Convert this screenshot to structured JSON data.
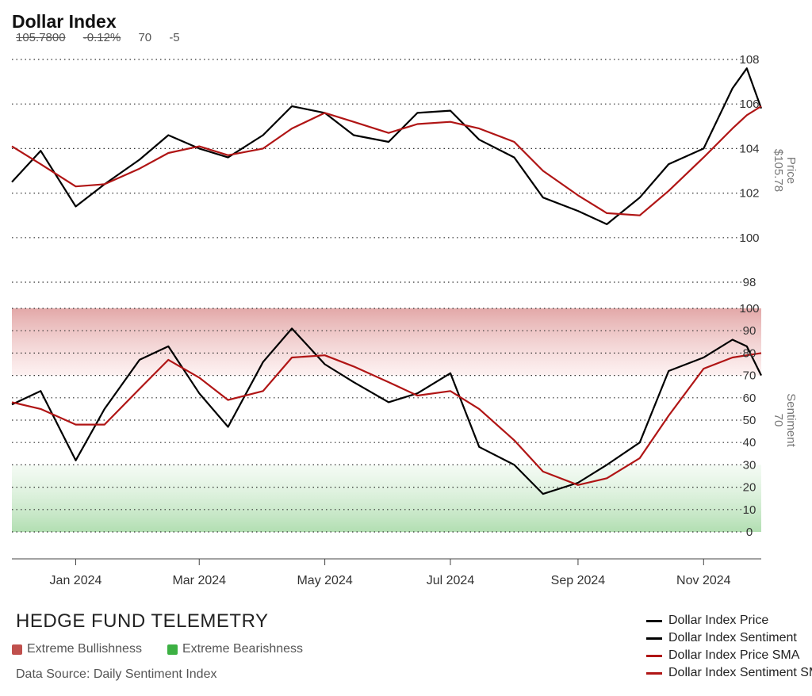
{
  "header": {
    "title": "Dollar Index",
    "price": "105.7800",
    "change": "-0.12%",
    "sentiment": "70",
    "sentiment_change": "-5"
  },
  "footer": {
    "brand": "HEDGE FUND TELEMETRY",
    "zone_legend": [
      {
        "label": "Extreme Bullishness",
        "color": "#c0504d"
      },
      {
        "label": "Extreme Bearishness",
        "color": "#3cb043"
      }
    ],
    "source": "Data Source: Daily Sentiment Index"
  },
  "series_legend": [
    {
      "label": "Dollar Index Price",
      "color": "#000000"
    },
    {
      "label": "Dollar Index Sentiment",
      "color": "#000000"
    },
    {
      "label": "Dollar Index Price SMA",
      "color": "#b01515"
    },
    {
      "label": "Dollar Index Sentiment SMA",
      "color": "#b01515"
    }
  ],
  "chart_data": [
    {
      "type": "line",
      "name": "price-panel",
      "ylabel": "Price",
      "ylabel_value": "$105.78",
      "ylim": [
        98,
        108
      ],
      "yticks": [
        98,
        100,
        102,
        104,
        106,
        108
      ],
      "grid": true,
      "xticks": [
        "Jan 2024",
        "Mar 2024",
        "May 2024",
        "Jul 2024",
        "Sep 2024",
        "Nov 2024"
      ],
      "x": [
        "2023-12-01",
        "2023-12-15",
        "2024-01-01",
        "2024-01-15",
        "2024-02-01",
        "2024-02-15",
        "2024-03-01",
        "2024-03-15",
        "2024-04-01",
        "2024-04-15",
        "2024-05-01",
        "2024-05-15",
        "2024-06-01",
        "2024-06-15",
        "2024-07-01",
        "2024-07-15",
        "2024-08-01",
        "2024-08-15",
        "2024-09-01",
        "2024-09-15",
        "2024-10-01",
        "2024-10-15",
        "2024-11-01",
        "2024-11-15",
        "2024-11-22",
        "2024-11-29"
      ],
      "series": [
        {
          "name": "Dollar Index Price",
          "color": "#000000",
          "values": [
            102.5,
            103.9,
            101.4,
            102.4,
            103.5,
            104.6,
            104.0,
            103.6,
            104.6,
            105.9,
            105.6,
            104.6,
            104.3,
            105.6,
            105.7,
            104.4,
            103.6,
            101.8,
            101.2,
            100.6,
            101.8,
            103.3,
            104.0,
            106.7,
            107.6,
            105.8
          ]
        },
        {
          "name": "Dollar Index Price SMA",
          "color": "#b01515",
          "values": [
            104.1,
            103.3,
            102.3,
            102.4,
            103.1,
            103.8,
            104.1,
            103.7,
            104.0,
            104.9,
            105.6,
            105.2,
            104.7,
            105.1,
            105.2,
            104.9,
            104.3,
            103.0,
            101.9,
            101.1,
            101.0,
            102.1,
            103.6,
            104.9,
            105.5,
            105.9
          ]
        }
      ]
    },
    {
      "type": "line",
      "name": "sentiment-panel",
      "ylabel": "Sentiment",
      "ylabel_value": "70",
      "ylim": [
        0,
        100
      ],
      "yticks": [
        0,
        10,
        20,
        30,
        40,
        50,
        60,
        70,
        80,
        90,
        100
      ],
      "extreme_bullish_zone": [
        70,
        100
      ],
      "extreme_bearish_zone": [
        0,
        30
      ],
      "grid": true,
      "x": [
        "2023-12-01",
        "2023-12-15",
        "2024-01-01",
        "2024-01-15",
        "2024-02-01",
        "2024-02-15",
        "2024-03-01",
        "2024-03-15",
        "2024-04-01",
        "2024-04-15",
        "2024-05-01",
        "2024-05-15",
        "2024-06-01",
        "2024-06-15",
        "2024-07-01",
        "2024-07-15",
        "2024-08-01",
        "2024-08-15",
        "2024-09-01",
        "2024-09-15",
        "2024-10-01",
        "2024-10-15",
        "2024-11-01",
        "2024-11-15",
        "2024-11-22",
        "2024-11-29"
      ],
      "series": [
        {
          "name": "Dollar Index Sentiment",
          "color": "#000000",
          "values": [
            57,
            63,
            32,
            55,
            77,
            83,
            62,
            47,
            76,
            91,
            75,
            67,
            58,
            62,
            71,
            38,
            30,
            17,
            22,
            30,
            40,
            72,
            78,
            86,
            83,
            70
          ]
        },
        {
          "name": "Dollar Index Sentiment SMA",
          "color": "#b01515",
          "values": [
            58,
            55,
            48,
            48,
            64,
            77,
            69,
            59,
            63,
            78,
            79,
            74,
            67,
            61,
            63,
            55,
            41,
            27,
            21,
            24,
            33,
            52,
            73,
            78,
            79,
            80
          ]
        }
      ]
    }
  ]
}
